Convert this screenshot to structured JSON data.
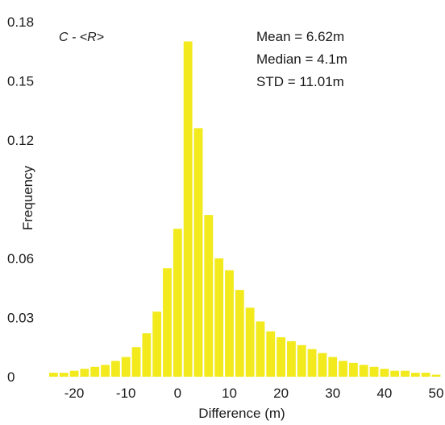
{
  "chart_data": {
    "type": "bar",
    "title": "",
    "panel_label": "C - <R>",
    "xlabel": "Difference (m)",
    "ylabel": "Frequency",
    "xlim": [
      -25,
      50
    ],
    "ylim": [
      0,
      0.18
    ],
    "bin_width": 2,
    "x_ticks": [
      -20,
      -10,
      0,
      10,
      20,
      30,
      40,
      50
    ],
    "x_tick_labels": [
      "-20",
      "-10",
      "0",
      "10",
      "20",
      "30",
      "40",
      "50"
    ],
    "y_ticks": [
      0,
      0.03,
      0.06,
      0.12,
      0.15,
      0.18
    ],
    "y_tick_labels": [
      "0",
      "0.03",
      "0.06",
      "0.12",
      "0.15",
      "0.18"
    ],
    "annotations": [
      "Mean = 6.62m",
      "Median = 4.1m",
      "STD = 11.01m"
    ],
    "bar_color": "#f2ea1c",
    "x": [
      -24,
      -22,
      -20,
      -18,
      -16,
      -14,
      -12,
      -10,
      -8,
      -6,
      -4,
      -2,
      0,
      2,
      4,
      6,
      8,
      10,
      12,
      14,
      16,
      18,
      20,
      22,
      24,
      26,
      28,
      30,
      32,
      34,
      36,
      38,
      40,
      42,
      44,
      46,
      48,
      50
    ],
    "values": [
      0.002,
      0.002,
      0.003,
      0.004,
      0.005,
      0.006,
      0.008,
      0.01,
      0.015,
      0.022,
      0.033,
      0.055,
      0.075,
      0.17,
      0.126,
      0.082,
      0.06,
      0.054,
      0.044,
      0.035,
      0.028,
      0.023,
      0.02,
      0.018,
      0.016,
      0.014,
      0.012,
      0.01,
      0.008,
      0.007,
      0.006,
      0.005,
      0.004,
      0.003,
      0.003,
      0.002,
      0.002,
      0.001
    ]
  }
}
